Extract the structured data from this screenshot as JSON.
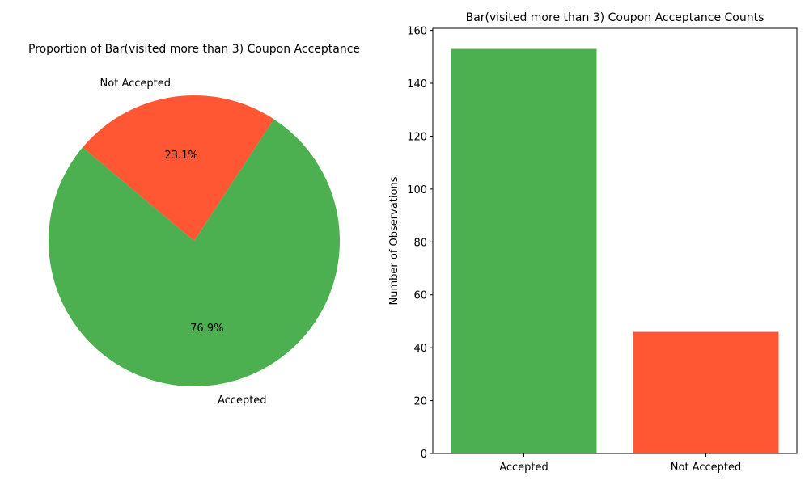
{
  "chart_data": [
    {
      "type": "pie",
      "title": "Proportion of Bar(visited more than 3) Coupon Acceptance",
      "slices": [
        {
          "label": "Accepted",
          "value": 76.9,
          "pct_label": "76.9%",
          "color": "#4caf50"
        },
        {
          "label": "Not Accepted",
          "value": 23.1,
          "pct_label": "23.1%",
          "color": "#ff5733"
        }
      ],
      "start_angle_deg": 140
    },
    {
      "type": "bar",
      "title": "Bar(visited more than 3) Coupon Acceptance Counts",
      "categories": [
        "Accepted",
        "Not Accepted"
      ],
      "values": [
        153,
        46
      ],
      "colors": [
        "#4caf50",
        "#ff5733"
      ],
      "xlabel": "",
      "ylabel": "Number of Observations",
      "ylim": [
        0,
        160.8
      ],
      "yticks": [
        0,
        20,
        40,
        60,
        80,
        100,
        120,
        140,
        160
      ]
    }
  ]
}
